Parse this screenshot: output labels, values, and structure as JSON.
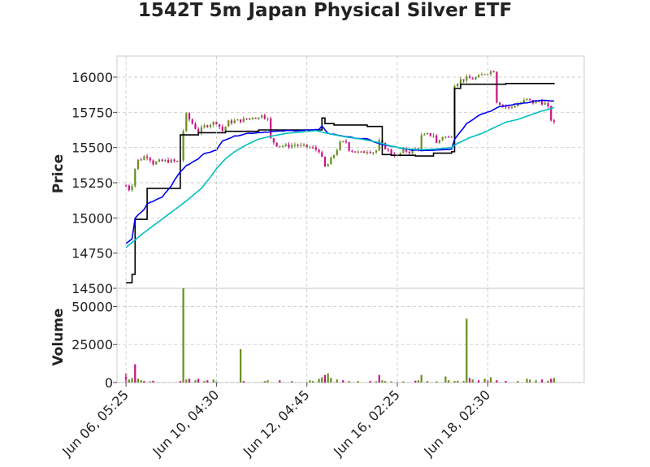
{
  "chart_data": {
    "type": "candlestick",
    "title": "1542T 5m Japan Physical Silver ETF",
    "colors": {
      "up": "#6b8e23",
      "down": "#c71585",
      "ma_fast": "#000000",
      "ma_mid": "#0000ee",
      "ma_slow": "#00bfc0",
      "grid": "#cccccc",
      "frame": "#dddddd"
    },
    "price_panel": {
      "ylabel": "Price",
      "ylim": [
        14500,
        16150
      ],
      "yticks": [
        14500,
        14750,
        15000,
        15250,
        15500,
        15750,
        16000
      ],
      "ytick_labels": [
        "14500",
        "14750",
        "15000",
        "15250",
        "15500",
        "15750",
        "16000"
      ]
    },
    "volume_panel": {
      "ylabel": "Volume",
      "ylim": [
        0,
        62000
      ],
      "yticks": [
        0,
        25000,
        50000
      ],
      "ytick_labels": [
        "0",
        "25000",
        "50000"
      ]
    },
    "x": {
      "range": [
        -3,
        152
      ],
      "tick_positions": [
        0,
        30,
        60,
        90,
        120
      ],
      "tick_labels": [
        "Jun 06, 05:25",
        "Jun 10, 04:30",
        "Jun 12, 04:45",
        "Jun 16, 02:25",
        "Jun 18, 02:30"
      ]
    },
    "close_anchors": [
      [
        0,
        15230
      ],
      [
        1,
        15205
      ],
      [
        2,
        15240
      ],
      [
        3,
        15350
      ],
      [
        4,
        15410
      ],
      [
        5,
        15420
      ],
      [
        6,
        15435
      ],
      [
        7,
        15440
      ],
      [
        8,
        15420
      ],
      [
        9,
        15390
      ],
      [
        11,
        15400
      ],
      [
        14,
        15405
      ],
      [
        17,
        15400
      ],
      [
        18,
        15410
      ],
      [
        19,
        15620
      ],
      [
        20,
        15730
      ],
      [
        21,
        15700
      ],
      [
        23,
        15640
      ],
      [
        24,
        15610
      ],
      [
        26,
        15650
      ],
      [
        28,
        15670
      ],
      [
        30,
        15680
      ],
      [
        32,
        15620
      ],
      [
        34,
        15680
      ],
      [
        37,
        15690
      ],
      [
        40,
        15700
      ],
      [
        42,
        15720
      ],
      [
        44,
        15710
      ],
      [
        45,
        15740
      ],
      [
        47,
        15700
      ],
      [
        48,
        15560
      ],
      [
        50,
        15520
      ],
      [
        53,
        15510
      ],
      [
        56,
        15520
      ],
      [
        58,
        15510
      ],
      [
        61,
        15500
      ],
      [
        64,
        15480
      ],
      [
        65,
        15420
      ],
      [
        66,
        15360
      ],
      [
        67,
        15380
      ],
      [
        69,
        15450
      ],
      [
        71,
        15530
      ],
      [
        73,
        15540
      ],
      [
        74,
        15490
      ],
      [
        76,
        15470
      ],
      [
        78,
        15460
      ],
      [
        80,
        15480
      ],
      [
        82,
        15470
      ],
      [
        83,
        15480
      ],
      [
        84,
        15540
      ],
      [
        86,
        15500
      ],
      [
        88,
        15460
      ],
      [
        90,
        15440
      ],
      [
        92,
        15480
      ],
      [
        94,
        15470
      ],
      [
        96,
        15490
      ],
      [
        97,
        15500
      ],
      [
        98,
        15580
      ],
      [
        100,
        15590
      ],
      [
        102,
        15590
      ],
      [
        103,
        15530
      ],
      [
        105,
        15580
      ],
      [
        107,
        15570
      ],
      [
        108,
        15590
      ],
      [
        109,
        15950
      ],
      [
        111,
        15980
      ],
      [
        113,
        15990
      ],
      [
        115,
        15990
      ],
      [
        117,
        16000
      ],
      [
        119,
        16030
      ],
      [
        121,
        16040
      ],
      [
        122,
        16050
      ],
      [
        123,
        15830
      ],
      [
        125,
        15800
      ],
      [
        127,
        15780
      ],
      [
        129,
        15800
      ],
      [
        131,
        15820
      ],
      [
        133,
        15840
      ],
      [
        135,
        15820
      ],
      [
        137,
        15830
      ],
      [
        139,
        15810
      ],
      [
        140,
        15780
      ],
      [
        141,
        15700
      ],
      [
        142,
        15670
      ]
    ],
    "ma_fast_steps": [
      [
        0,
        14540
      ],
      [
        2,
        14600
      ],
      [
        3,
        14990
      ],
      [
        7,
        15210
      ],
      [
        18,
        15590
      ],
      [
        24,
        15605
      ],
      [
        33,
        15615
      ],
      [
        44,
        15625
      ],
      [
        58,
        15625
      ],
      [
        65,
        15710
      ],
      [
        66,
        15670
      ],
      [
        69,
        15660
      ],
      [
        80,
        15650
      ],
      [
        85,
        15450
      ],
      [
        88,
        15445
      ],
      [
        96,
        15440
      ],
      [
        102,
        15460
      ],
      [
        108,
        15470
      ],
      [
        109,
        15920
      ],
      [
        111,
        15950
      ],
      [
        124,
        15950
      ],
      [
        126,
        15955
      ],
      [
        142,
        15950
      ]
    ],
    "ma_mid_anchors": [
      [
        0,
        14820
      ],
      [
        2,
        14850
      ],
      [
        3,
        15000
      ],
      [
        6,
        15060
      ],
      [
        7,
        15100
      ],
      [
        10,
        15130
      ],
      [
        12,
        15150
      ],
      [
        15,
        15230
      ],
      [
        18,
        15330
      ],
      [
        20,
        15370
      ],
      [
        24,
        15420
      ],
      [
        26,
        15460
      ],
      [
        30,
        15480
      ],
      [
        32,
        15550
      ],
      [
        36,
        15580
      ],
      [
        40,
        15600
      ],
      [
        46,
        15610
      ],
      [
        54,
        15620
      ],
      [
        64,
        15625
      ],
      [
        65,
        15655
      ],
      [
        67,
        15600
      ],
      [
        70,
        15590
      ],
      [
        75,
        15570
      ],
      [
        80,
        15560
      ],
      [
        85,
        15520
      ],
      [
        88,
        15510
      ],
      [
        92,
        15490
      ],
      [
        96,
        15480
      ],
      [
        100,
        15480
      ],
      [
        104,
        15485
      ],
      [
        108,
        15490
      ],
      [
        109,
        15560
      ],
      [
        113,
        15670
      ],
      [
        117,
        15730
      ],
      [
        121,
        15760
      ],
      [
        124,
        15790
      ],
      [
        127,
        15800
      ],
      [
        133,
        15820
      ],
      [
        137,
        15835
      ],
      [
        142,
        15830
      ]
    ],
    "ma_slow_anchors": [
      [
        0,
        14790
      ],
      [
        5,
        14880
      ],
      [
        10,
        14960
      ],
      [
        15,
        15040
      ],
      [
        20,
        15120
      ],
      [
        25,
        15210
      ],
      [
        28,
        15290
      ],
      [
        30,
        15350
      ],
      [
        33,
        15420
      ],
      [
        36,
        15470
      ],
      [
        40,
        15520
      ],
      [
        44,
        15560
      ],
      [
        48,
        15580
      ],
      [
        53,
        15600
      ],
      [
        58,
        15610
      ],
      [
        63,
        15620
      ],
      [
        68,
        15595
      ],
      [
        73,
        15575
      ],
      [
        78,
        15560
      ],
      [
        83,
        15540
      ],
      [
        88,
        15510
      ],
      [
        93,
        15490
      ],
      [
        98,
        15485
      ],
      [
        103,
        15490
      ],
      [
        108,
        15500
      ],
      [
        110,
        15530
      ],
      [
        114,
        15570
      ],
      [
        118,
        15600
      ],
      [
        122,
        15640
      ],
      [
        126,
        15680
      ],
      [
        130,
        15700
      ],
      [
        134,
        15730
      ],
      [
        138,
        15760
      ],
      [
        140,
        15770
      ],
      [
        142,
        15785
      ]
    ],
    "volume_spikes": [
      [
        0,
        6000
      ],
      [
        1,
        2000
      ],
      [
        2,
        3000
      ],
      [
        3,
        12000
      ],
      [
        4,
        2500
      ],
      [
        5,
        1500
      ],
      [
        6,
        1000
      ],
      [
        8,
        800
      ],
      [
        9,
        1200
      ],
      [
        18,
        1000
      ],
      [
        19,
        62000
      ],
      [
        20,
        2000
      ],
      [
        21,
        2500
      ],
      [
        23,
        1500
      ],
      [
        24,
        2500
      ],
      [
        26,
        1000
      ],
      [
        27,
        1500
      ],
      [
        29,
        2000
      ],
      [
        30,
        800
      ],
      [
        38,
        22000
      ],
      [
        39,
        1000
      ],
      [
        46,
        1000
      ],
      [
        47,
        1500
      ],
      [
        51,
        1500
      ],
      [
        55,
        1000
      ],
      [
        61,
        1500
      ],
      [
        62,
        1000
      ],
      [
        64,
        2500
      ],
      [
        65,
        3500
      ],
      [
        66,
        5000
      ],
      [
        67,
        6000
      ],
      [
        68,
        3000
      ],
      [
        70,
        2000
      ],
      [
        72,
        1500
      ],
      [
        74,
        1000
      ],
      [
        77,
        1000
      ],
      [
        81,
        1000
      ],
      [
        83,
        800
      ],
      [
        84,
        5000
      ],
      [
        85,
        1500
      ],
      [
        86,
        1000
      ],
      [
        88,
        800
      ],
      [
        92,
        800
      ],
      [
        96,
        1200
      ],
      [
        97,
        1500
      ],
      [
        98,
        5000
      ],
      [
        100,
        1000
      ],
      [
        103,
        800
      ],
      [
        106,
        4000
      ],
      [
        107,
        1500
      ],
      [
        109,
        1000
      ],
      [
        110,
        1200
      ],
      [
        112,
        1000
      ],
      [
        113,
        42000
      ],
      [
        114,
        3000
      ],
      [
        115,
        2000
      ],
      [
        117,
        1500
      ],
      [
        119,
        2500
      ],
      [
        120,
        1500
      ],
      [
        121,
        3500
      ],
      [
        123,
        1500
      ],
      [
        126,
        1000
      ],
      [
        130,
        1000
      ],
      [
        133,
        2500
      ],
      [
        134,
        2000
      ],
      [
        136,
        1500
      ],
      [
        138,
        2000
      ],
      [
        140,
        1200
      ],
      [
        141,
        2500
      ],
      [
        142,
        3000
      ]
    ],
    "candle_count": 143
  }
}
